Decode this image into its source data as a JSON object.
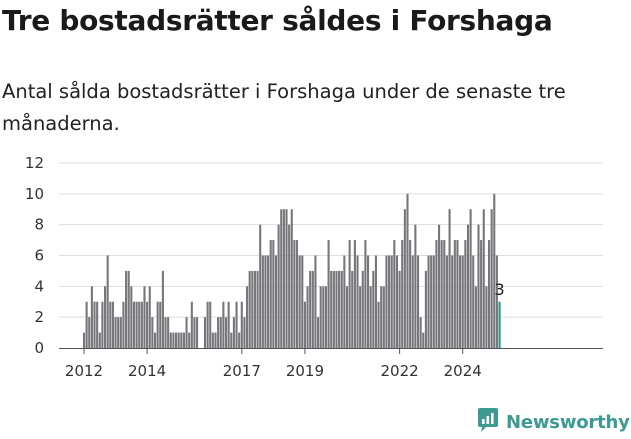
{
  "header": {
    "title": "Tre bostadsrätter såldes i Forshaga",
    "subtitle": "Antal sålda bostadsrätter i Forshaga under de senaste tre månaderna."
  },
  "brand": {
    "name": "Newsworthy",
    "icon": "newsworthy-logo-icon",
    "color": "#3d9a92"
  },
  "colors": {
    "bar": "#77767b",
    "highlight": "#1a9c8f"
  },
  "chart_data": {
    "type": "bar",
    "title": "Tre bostadsrätter såldes i Forshaga",
    "subtitle": "Antal sålda bostadsrätter i Forshaga under de senaste tre månaderna.",
    "xlabel": "",
    "ylabel": "",
    "ylim": [
      0,
      12
    ],
    "yticks": [
      0,
      2,
      4,
      6,
      8,
      10,
      12
    ],
    "xticks": [
      {
        "label": "2012",
        "index": 0
      },
      {
        "label": "2014",
        "index": 24
      },
      {
        "label": "2017",
        "index": 60
      },
      {
        "label": "2019",
        "index": 84
      },
      {
        "label": "2022",
        "index": 120
      },
      {
        "label": "2024",
        "index": 144
      }
    ],
    "grid": true,
    "start": "2012-01",
    "interval": "month",
    "highlight_last": true,
    "last_value_label": "3",
    "values": [
      1,
      3,
      2,
      4,
      3,
      3,
      1,
      3,
      4,
      6,
      3,
      3,
      2,
      2,
      2,
      3,
      5,
      5,
      4,
      3,
      3,
      3,
      3,
      4,
      3,
      4,
      2,
      1,
      3,
      3,
      5,
      2,
      2,
      1,
      1,
      1,
      1,
      1,
      1,
      2,
      1,
      3,
      2,
      2,
      0,
      0,
      2,
      3,
      3,
      1,
      1,
      2,
      2,
      3,
      2,
      3,
      1,
      2,
      3,
      1,
      3,
      2,
      4,
      5,
      5,
      5,
      5,
      8,
      6,
      6,
      6,
      7,
      7,
      6,
      8,
      9,
      9,
      9,
      8,
      9,
      7,
      7,
      6,
      6,
      3,
      4,
      5,
      5,
      6,
      2,
      4,
      4,
      4,
      7,
      5,
      5,
      5,
      5,
      5,
      6,
      4,
      7,
      5,
      7,
      6,
      4,
      5,
      7,
      6,
      4,
      5,
      6,
      3,
      4,
      4,
      6,
      6,
      6,
      7,
      6,
      5,
      7,
      9,
      10,
      7,
      6,
      8,
      6,
      2,
      1,
      5,
      6,
      6,
      6,
      7,
      8,
      7,
      7,
      6,
      9,
      6,
      7,
      7,
      6,
      6,
      7,
      8,
      9,
      6,
      4,
      8,
      7,
      9,
      4,
      7,
      9,
      10,
      6,
      3
    ]
  }
}
